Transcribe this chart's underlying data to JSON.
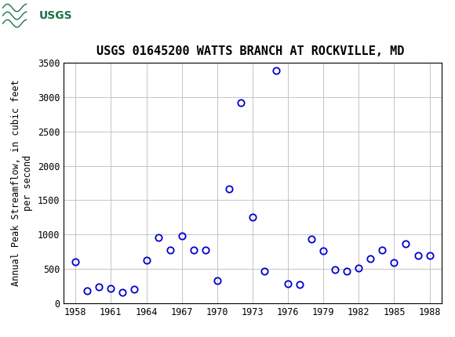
{
  "title": "USGS 01645200 WATTS BRANCH AT ROCKVILLE, MD",
  "ylabel": "Annual Peak Streamflow, in cubic feet\nper second",
  "years": [
    1958,
    1959,
    1960,
    1961,
    1962,
    1963,
    1964,
    1965,
    1966,
    1967,
    1968,
    1969,
    1970,
    1971,
    1972,
    1973,
    1974,
    1975,
    1976,
    1977,
    1978,
    1979,
    1980,
    1981,
    1982,
    1983,
    1984,
    1985,
    1986,
    1987,
    1988
  ],
  "flows": [
    600,
    180,
    240,
    215,
    160,
    210,
    630,
    960,
    770,
    985,
    770,
    770,
    330,
    1660,
    2920,
    1255,
    465,
    3390,
    285,
    270,
    940,
    760,
    490,
    470,
    515,
    650,
    775,
    590,
    870,
    700,
    690
  ],
  "xlim": [
    1957,
    1989
  ],
  "ylim": [
    0,
    3500
  ],
  "yticks": [
    0,
    500,
    1000,
    1500,
    2000,
    2500,
    3000,
    3500
  ],
  "xticks": [
    1958,
    1961,
    1964,
    1967,
    1970,
    1973,
    1976,
    1979,
    1982,
    1985,
    1988
  ],
  "marker_color": "#0000cc",
  "marker_size": 6,
  "grid_color": "#bbbbbb",
  "bg_color": "#ffffff",
  "header_color": "#1e7347",
  "title_fontsize": 11,
  "label_fontsize": 8.5,
  "tick_fontsize": 8.5
}
